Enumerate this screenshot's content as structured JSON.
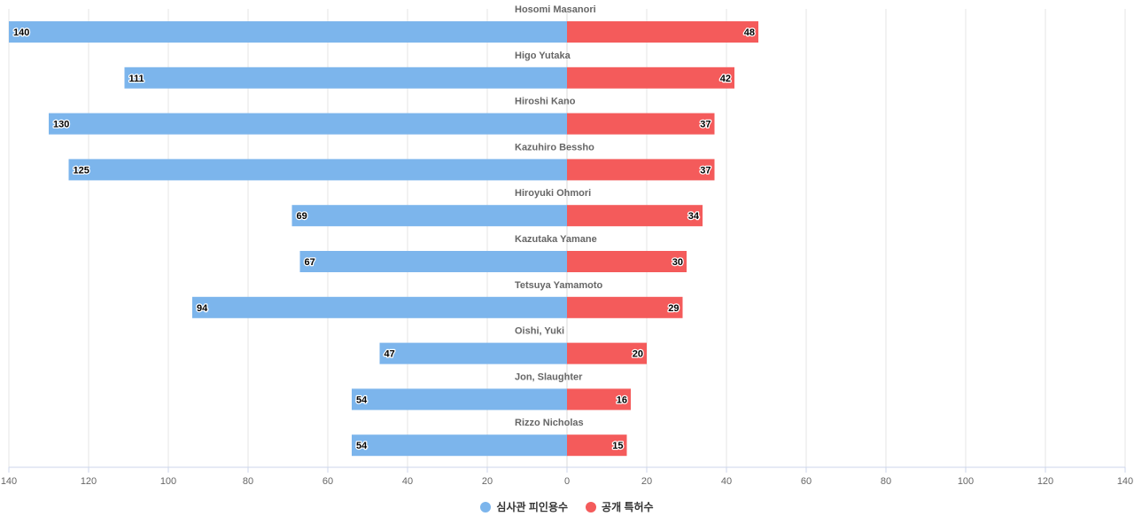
{
  "chart_data": {
    "type": "bar",
    "orientation": "horizontal-diverging",
    "title": "",
    "categories": [
      "Hosomi Masanori",
      "Higo Yutaka",
      "Hiroshi Kano",
      "Kazuhiro Bessho",
      "Hiroyuki Ohmori",
      "Kazutaka Yamane",
      "Tetsuya Yamamoto",
      "Oishi, Yuki",
      "Jon, Slaughter",
      "Rizzo Nicholas"
    ],
    "series": [
      {
        "name": "심사관 피인용수",
        "color": "#7cb5ec",
        "side": "left",
        "values": [
          140,
          111,
          130,
          125,
          69,
          67,
          94,
          47,
          54,
          54
        ]
      },
      {
        "name": "공개 특허수",
        "color": "#f45b5b",
        "side": "right",
        "values": [
          48,
          42,
          37,
          37,
          34,
          30,
          29,
          20,
          16,
          15
        ]
      }
    ],
    "xlim": [
      -140,
      140
    ],
    "tick_labels": [
      "140",
      "120",
      "100",
      "80",
      "60",
      "40",
      "20",
      "0",
      "20",
      "40",
      "60",
      "80",
      "100",
      "120",
      "140"
    ],
    "grid": true,
    "legend_position": "bottom-center"
  }
}
